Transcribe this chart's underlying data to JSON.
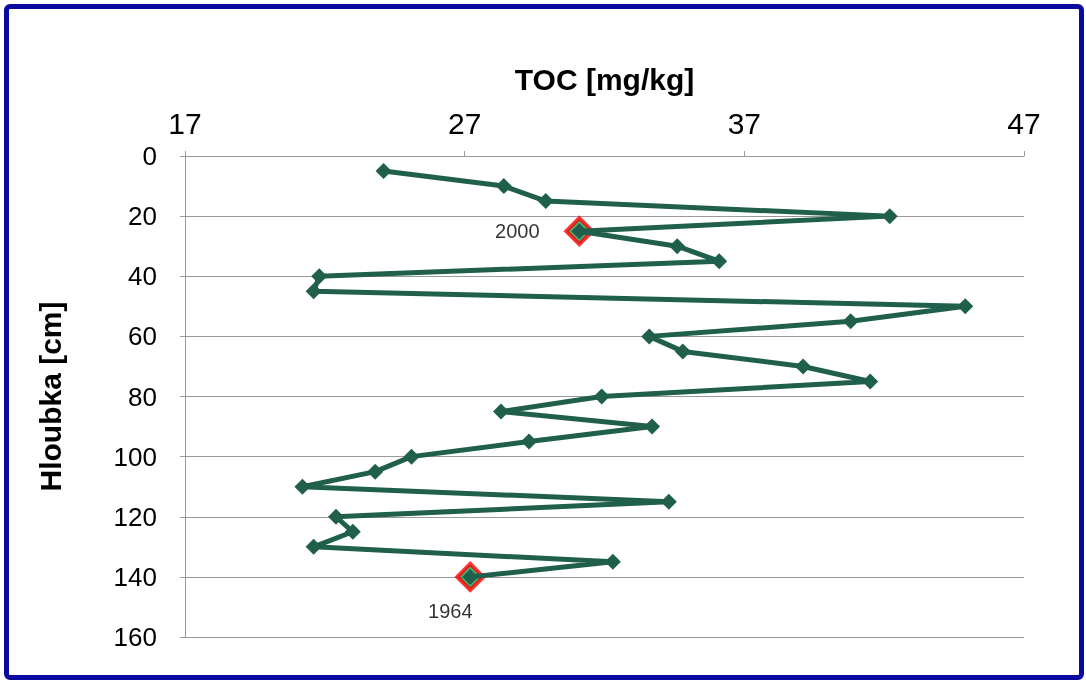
{
  "chart_data": {
    "type": "line",
    "xlabel": "TOC [mg/kg]",
    "ylabel": "Hloubka [cm]",
    "xlim": [
      17,
      47
    ],
    "xticks": [
      17,
      27,
      37,
      47
    ],
    "ylim": [
      160,
      0
    ],
    "yticks": [
      0,
      20,
      40,
      60,
      80,
      100,
      120,
      140,
      160
    ],
    "grid": "y",
    "marker": "diamond",
    "line_style": "solid",
    "series": [
      {
        "color": "#1f5f4b",
        "x": [
          24.1,
          28.4,
          29.9,
          42.2,
          31.1,
          34.6,
          36.1,
          21.8,
          21.6,
          44.9,
          40.8,
          33.6,
          34.8,
          39.1,
          41.5,
          31.9,
          28.3,
          33.7,
          29.3,
          25.1,
          23.8,
          21.2,
          34.3,
          22.4,
          23.0,
          21.6,
          32.3,
          27.2
        ],
        "values": [
          5,
          10,
          15,
          20,
          25,
          30,
          35,
          40,
          45,
          50,
          55,
          60,
          65,
          70,
          75,
          80,
          85,
          90,
          95,
          100,
          105,
          110,
          115,
          120,
          125,
          130,
          135,
          140
        ]
      },
      {
        "type": "scatter",
        "color": "#1aa055",
        "x": [
          31.1,
          27.2
        ],
        "values": [
          25,
          140
        ]
      }
    ],
    "annotations": [
      {
        "text": "2000",
        "x": 31.1,
        "y": 25
      },
      {
        "text": "1964",
        "x": 27.2,
        "y": 140
      }
    ]
  }
}
